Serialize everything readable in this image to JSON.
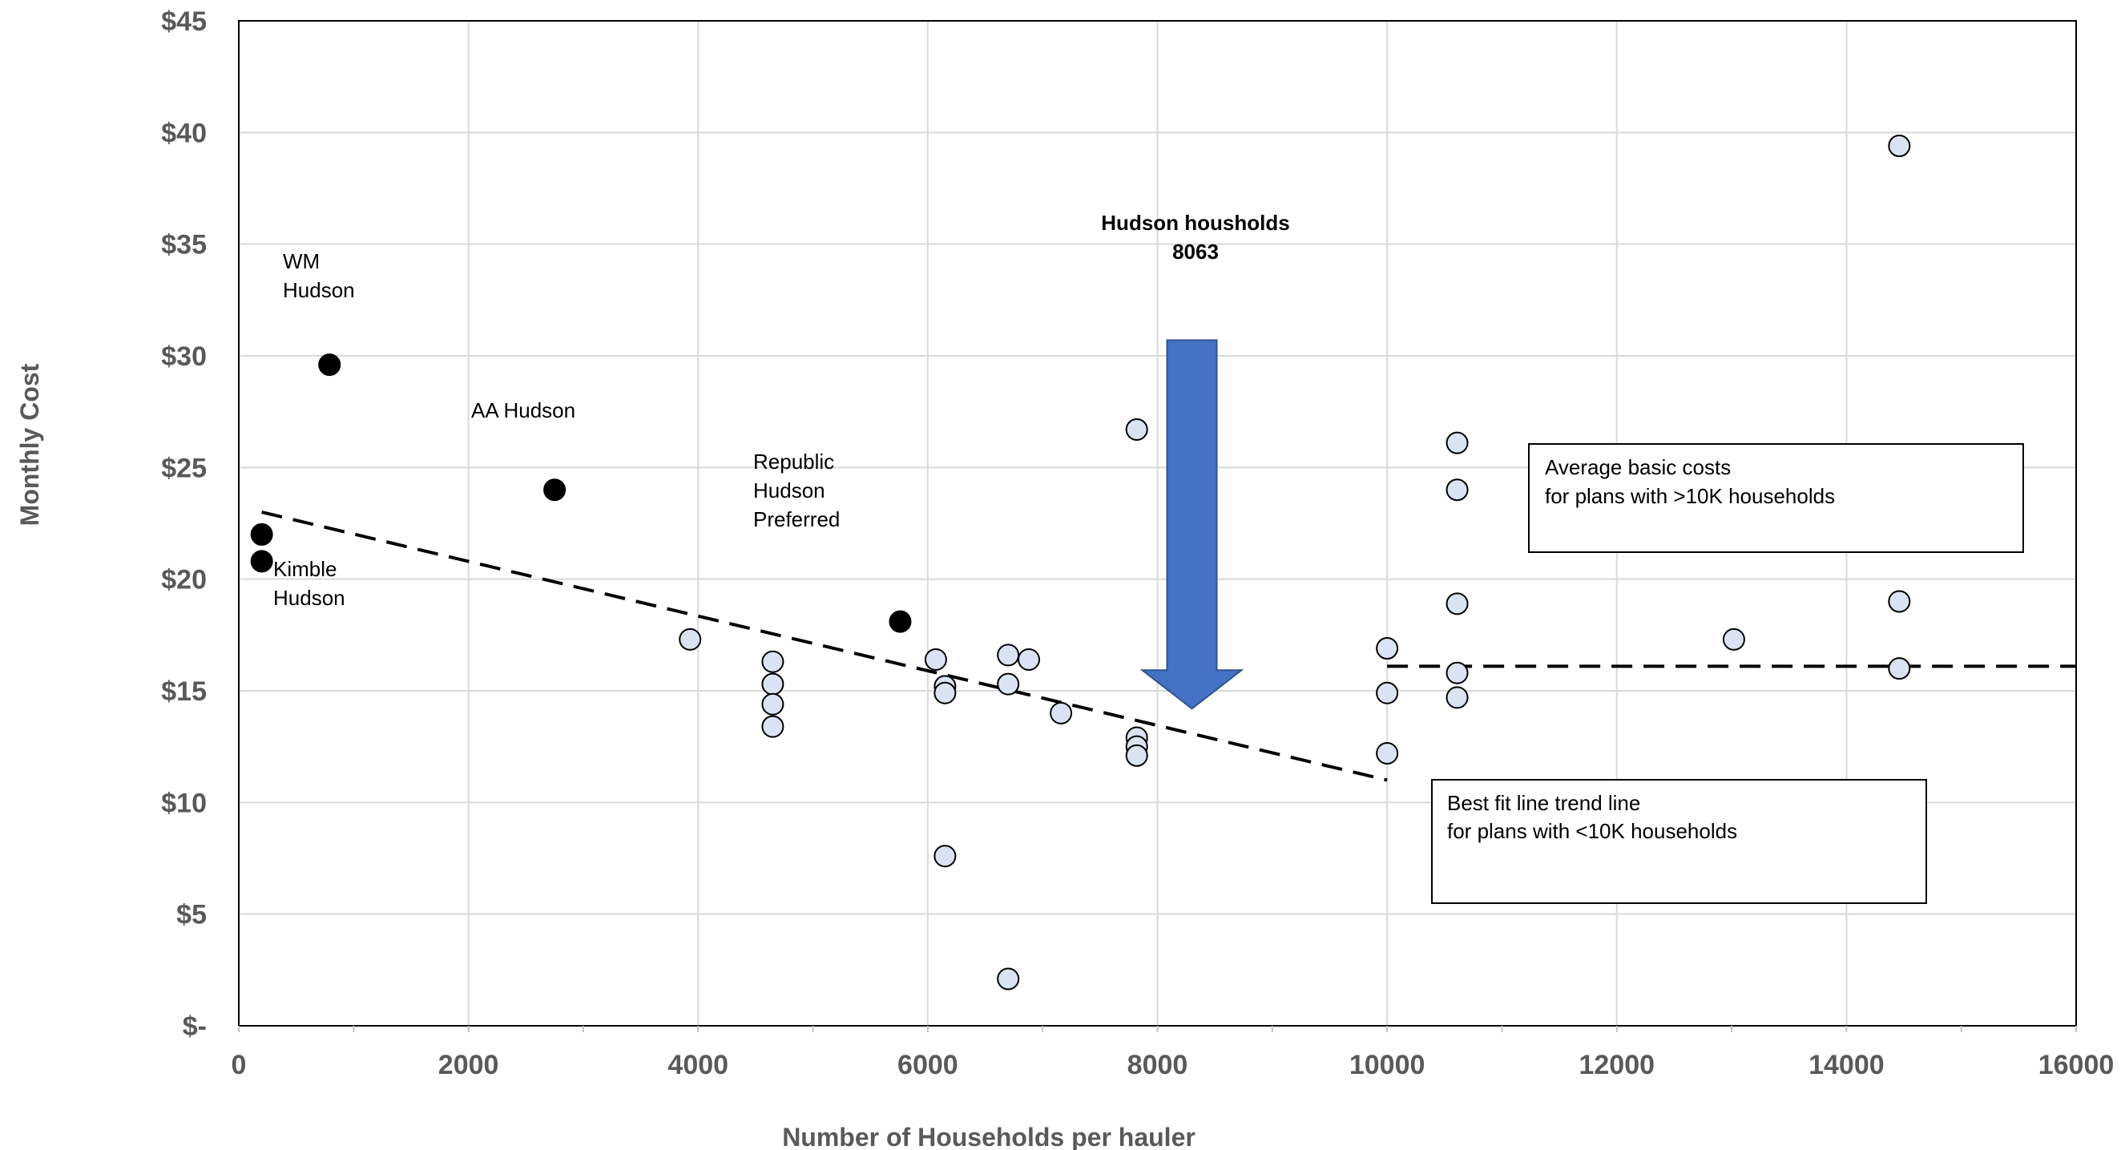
{
  "chart_data": {
    "type": "scatter",
    "xlabel": "Number of Households per hauler",
    "ylabel": "Monthly Cost",
    "xlim": [
      0,
      16000
    ],
    "ylim": [
      0,
      45
    ],
    "xticks": [
      0,
      2000,
      4000,
      6000,
      8000,
      10000,
      12000,
      14000,
      16000
    ],
    "xtick_labels": [
      "0",
      "2000",
      "4000",
      "6000",
      "8000",
      "10000",
      "12000",
      "14000",
      "16000"
    ],
    "yticks": [
      0,
      5,
      10,
      15,
      20,
      25,
      30,
      35,
      40,
      45
    ],
    "ytick_labels": [
      "$-",
      "$5",
      "$10",
      "$15",
      "$20",
      "$25",
      "$30",
      "$35",
      "$40",
      "$45"
    ],
    "grid": true,
    "series": [
      {
        "style": "filled-black",
        "points": [
          {
            "x": 200,
            "y": 22.0
          },
          {
            "x": 200,
            "y": 20.8
          },
          {
            "x": 790,
            "y": 29.6
          },
          {
            "x": 2750,
            "y": 24.0
          },
          {
            "x": 5760,
            "y": 18.1
          }
        ]
      },
      {
        "style": "open-lightblue",
        "points": [
          {
            "x": 3930,
            "y": 17.3
          },
          {
            "x": 4650,
            "y": 16.3
          },
          {
            "x": 4650,
            "y": 15.3
          },
          {
            "x": 4650,
            "y": 14.4
          },
          {
            "x": 4650,
            "y": 13.4
          },
          {
            "x": 6070,
            "y": 16.4
          },
          {
            "x": 6150,
            "y": 15.2
          },
          {
            "x": 6150,
            "y": 14.9
          },
          {
            "x": 6150,
            "y": 7.6
          },
          {
            "x": 6700,
            "y": 16.6
          },
          {
            "x": 6700,
            "y": 15.3
          },
          {
            "x": 6700,
            "y": 2.1
          },
          {
            "x": 6880,
            "y": 16.4
          },
          {
            "x": 7160,
            "y": 14.0
          },
          {
            "x": 7820,
            "y": 26.7
          },
          {
            "x": 7820,
            "y": 12.9
          },
          {
            "x": 7820,
            "y": 12.5
          },
          {
            "x": 7820,
            "y": 12.1
          },
          {
            "x": 10000,
            "y": 16.9
          },
          {
            "x": 10000,
            "y": 14.9
          },
          {
            "x": 10000,
            "y": 12.2
          },
          {
            "x": 10610,
            "y": 26.1
          },
          {
            "x": 10610,
            "y": 24.0
          },
          {
            "x": 10610,
            "y": 18.9
          },
          {
            "x": 10610,
            "y": 15.8
          },
          {
            "x": 10610,
            "y": 14.7
          },
          {
            "x": 13020,
            "y": 17.3
          },
          {
            "x": 14460,
            "y": 39.4
          },
          {
            "x": 14460,
            "y": 19.0
          },
          {
            "x": 14460,
            "y": 16.0
          }
        ]
      }
    ],
    "trend_lines": [
      {
        "x": [
          200,
          10000
        ],
        "y": [
          23.0,
          11.0
        ]
      },
      {
        "x": [
          10000,
          16000
        ],
        "y": [
          16.1,
          16.1
        ]
      }
    ],
    "arrow": {
      "x": 8300,
      "y_top": 30.7,
      "y_tip": 14.2,
      "color": "#4472C4"
    },
    "annotations": {
      "wm_line1": "WM",
      "wm_line2": "Hudson",
      "aa": "AA Hudson",
      "kimble_line1": "Kimble",
      "kimble_line2": "Hudson",
      "republic_line1": "Republic",
      "republic_line2": "Hudson",
      "republic_line3": "Preferred",
      "hudson_title": "Hudson housholds",
      "hudson_value": "8063",
      "box_avg_line1": "Average basic costs",
      "box_avg_line2": "for plans with >10K households",
      "box_fit_line1": "Best fit line trend line",
      "box_fit_line2": "for plans with <10K households"
    }
  }
}
